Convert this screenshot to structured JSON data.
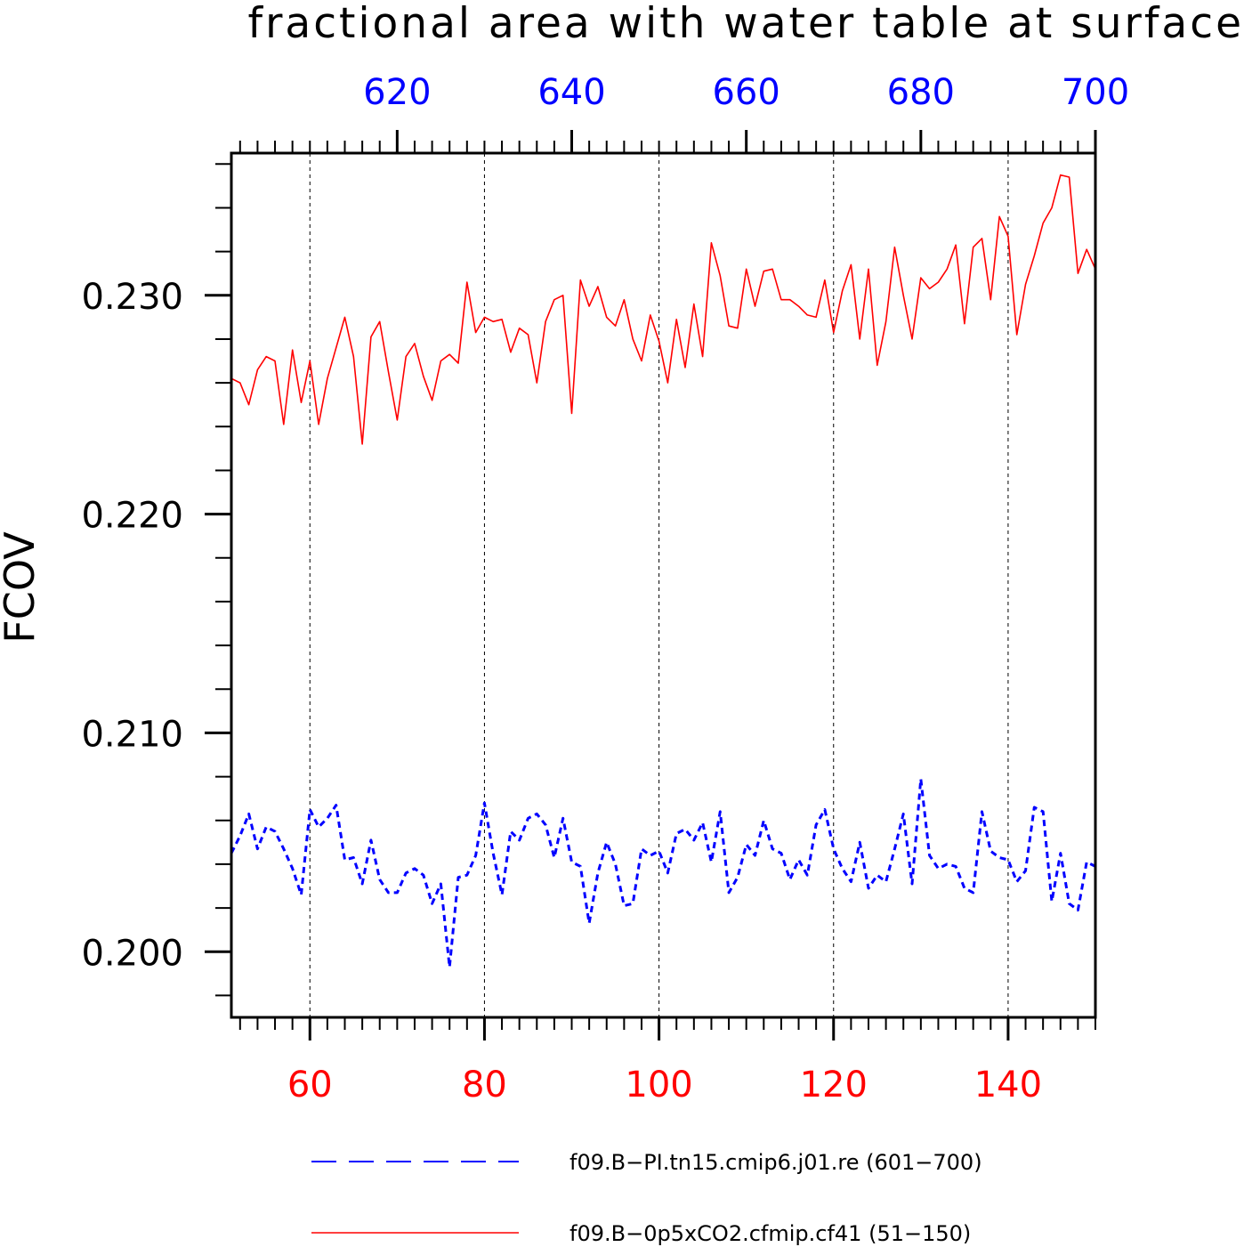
{
  "chart_data": {
    "type": "line",
    "title": "fractional area with water table at surface",
    "ylabel": "FCOV",
    "xlabel": "",
    "ylim": [
      0.197,
      0.2365
    ],
    "yticks": [
      0.2,
      0.21,
      0.22,
      0.23
    ],
    "ytick_labels": [
      "0.200",
      "0.210",
      "0.220",
      "0.230"
    ],
    "grid": "vertical dashed lines at major bottom-axis ticks",
    "bottom_axis": {
      "xlim": [
        51,
        150
      ],
      "ticks": [
        60,
        80,
        100,
        120,
        140
      ],
      "tick_labels": [
        "60",
        "80",
        "100",
        "120",
        "140"
      ],
      "color": "#ff0000"
    },
    "top_axis": {
      "xlim": [
        601,
        700
      ],
      "ticks": [
        620,
        640,
        660,
        680,
        700
      ],
      "tick_labels": [
        "620",
        "640",
        "660",
        "680",
        "700"
      ],
      "color": "#0000ff"
    },
    "legend_position": "bottom",
    "series": [
      {
        "name": "f09.B−PI.tn15.cmip6.j01.re (601−700)",
        "axis": "top",
        "color": "#0000ff",
        "style": "dashed",
        "x_start": 601,
        "values": [
          0.2045,
          0.2053,
          0.2063,
          0.2047,
          0.2057,
          0.2055,
          0.2047,
          0.2038,
          0.2026,
          0.2065,
          0.2057,
          0.2061,
          0.2067,
          0.2042,
          0.2043,
          0.2031,
          0.2051,
          0.2033,
          0.2027,
          0.2027,
          0.2036,
          0.2038,
          0.2035,
          0.2022,
          0.2031,
          0.1993,
          0.2034,
          0.2035,
          0.2044,
          0.2068,
          0.2045,
          0.2026,
          0.2055,
          0.2051,
          0.2061,
          0.2063,
          0.2058,
          0.2043,
          0.2061,
          0.2041,
          0.2039,
          0.2013,
          0.2036,
          0.205,
          0.204,
          0.2021,
          0.2022,
          0.2047,
          0.2044,
          0.2046,
          0.2036,
          0.2054,
          0.2056,
          0.2051,
          0.2059,
          0.2041,
          0.2064,
          0.2027,
          0.2034,
          0.2049,
          0.2044,
          0.206,
          0.2047,
          0.2045,
          0.2033,
          0.2042,
          0.2035,
          0.2058,
          0.2065,
          0.2047,
          0.2038,
          0.2032,
          0.205,
          0.2029,
          0.2035,
          0.2032,
          0.2047,
          0.2063,
          0.2031,
          0.2079,
          0.2044,
          0.2038,
          0.204,
          0.2039,
          0.2029,
          0.2027,
          0.2064,
          0.2046,
          0.2043,
          0.2042,
          0.2032,
          0.2037,
          0.2066,
          0.2064,
          0.2023,
          0.2045,
          0.2022,
          0.2019,
          0.2041,
          0.2039
        ]
      },
      {
        "name": "f09.B−0p5xCO2.cfmip.cf41 (51−150)",
        "axis": "bottom",
        "color": "#ff0000",
        "style": "solid",
        "x_start": 51,
        "values": [
          0.2262,
          0.226,
          0.225,
          0.2266,
          0.2272,
          0.227,
          0.2241,
          0.2275,
          0.2251,
          0.227,
          0.2241,
          0.2262,
          0.2276,
          0.229,
          0.2272,
          0.2232,
          0.2281,
          0.2288,
          0.2265,
          0.2243,
          0.2272,
          0.2278,
          0.2263,
          0.2252,
          0.227,
          0.2273,
          0.2269,
          0.2306,
          0.2283,
          0.229,
          0.2288,
          0.2289,
          0.2274,
          0.2285,
          0.2282,
          0.226,
          0.2288,
          0.2298,
          0.23,
          0.2246,
          0.2307,
          0.2295,
          0.2304,
          0.229,
          0.2286,
          0.2298,
          0.228,
          0.227,
          0.2291,
          0.2279,
          0.226,
          0.2289,
          0.2267,
          0.2296,
          0.2272,
          0.2324,
          0.2309,
          0.2286,
          0.2285,
          0.2312,
          0.2295,
          0.2311,
          0.2312,
          0.2298,
          0.2298,
          0.2295,
          0.2291,
          0.229,
          0.2307,
          0.2283,
          0.2302,
          0.2314,
          0.228,
          0.2312,
          0.2268,
          0.2288,
          0.2322,
          0.23,
          0.228,
          0.2308,
          0.2303,
          0.2306,
          0.2312,
          0.2323,
          0.2287,
          0.2322,
          0.2326,
          0.2298,
          0.2336,
          0.2327,
          0.2282,
          0.2305,
          0.2318,
          0.2333,
          0.234,
          0.2355,
          0.2354,
          0.231,
          0.2321,
          0.2312
        ]
      }
    ]
  }
}
